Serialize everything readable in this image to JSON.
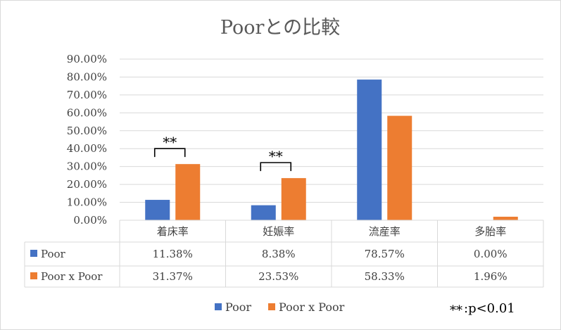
{
  "chart_data": {
    "type": "bar",
    "title": "Poorとの比較",
    "categories": [
      "着床率",
      "妊娠率",
      "流産率",
      "多胎率"
    ],
    "series": [
      {
        "name": "Poor",
        "values": [
          11.38,
          8.38,
          78.57,
          0.0
        ],
        "labels": [
          "11.38%",
          "8.38%",
          "78.57%",
          "0.00%"
        ],
        "color": "#4472C4"
      },
      {
        "name": "Poor x Poor",
        "values": [
          31.37,
          23.53,
          58.33,
          1.96
        ],
        "labels": [
          "31.37%",
          "23.53%",
          "58.33%",
          "1.96%"
        ],
        "color": "#ED7D31"
      }
    ],
    "ylim": [
      0,
      90
    ],
    "yticks": [
      "0.00%",
      "10.00%",
      "20.00%",
      "30.00%",
      "40.00%",
      "50.00%",
      "60.00%",
      "70.00%",
      "80.00%",
      "90.00%"
    ],
    "grid": true,
    "data_table": true,
    "legend_position": "bottom",
    "significance": [
      {
        "category_index": 0,
        "label": "**"
      },
      {
        "category_index": 1,
        "label": "**"
      }
    ],
    "footnote": {
      "mark": "**",
      "text": ":p<0.01"
    }
  },
  "colors": {
    "border": "#D9D9D9",
    "grid": "#D9D9D9"
  }
}
